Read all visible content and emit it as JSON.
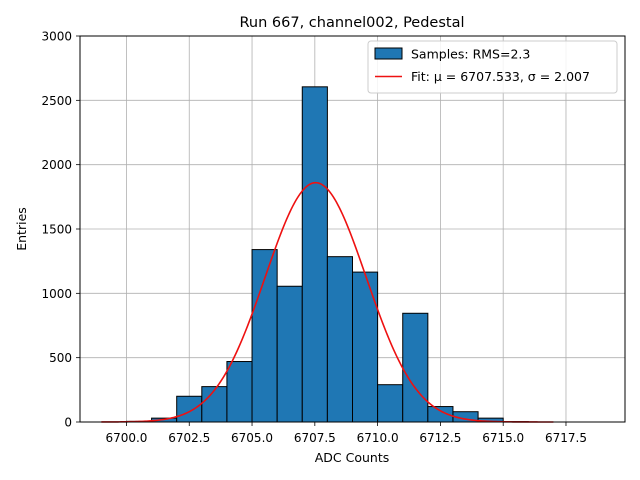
{
  "chart_data": {
    "type": "bar",
    "title": "Run 667, channel002, Pedestal",
    "xlabel": "ADC Counts",
    "ylabel": "Entries",
    "xlim": [
      6698.15,
      6719.85
    ],
    "ylim": [
      0,
      3000
    ],
    "xticks": [
      6700.0,
      6702.5,
      6705.0,
      6707.5,
      6710.0,
      6712.5,
      6715.0,
      6717.5
    ],
    "xtick_labels": [
      "6700.0",
      "6702.5",
      "6705.0",
      "6707.5",
      "6710.0",
      "6712.5",
      "6715.0",
      "6717.5"
    ],
    "yticks": [
      0,
      500,
      1000,
      1500,
      2000,
      2500,
      3000
    ],
    "ytick_labels": [
      "0",
      "500",
      "1000",
      "1500",
      "2000",
      "2500",
      "3000"
    ],
    "grid": true,
    "legend_placement": "top-right",
    "bin_width": 1,
    "bins": [
      {
        "x0": 6700,
        "x1": 6701,
        "value": 5
      },
      {
        "x0": 6701,
        "x1": 6702,
        "value": 30
      },
      {
        "x0": 6702,
        "x1": 6703,
        "value": 200
      },
      {
        "x0": 6703,
        "x1": 6704,
        "value": 275
      },
      {
        "x0": 6704,
        "x1": 6705,
        "value": 470
      },
      {
        "x0": 6705,
        "x1": 6706,
        "value": 1340
      },
      {
        "x0": 6706,
        "x1": 6707,
        "value": 1055
      },
      {
        "x0": 6707,
        "x1": 6708,
        "value": 2605
      },
      {
        "x0": 6708,
        "x1": 6709,
        "value": 1285
      },
      {
        "x0": 6709,
        "x1": 6710,
        "value": 1165
      },
      {
        "x0": 6710,
        "x1": 6711,
        "value": 290
      },
      {
        "x0": 6711,
        "x1": 6712,
        "value": 845
      },
      {
        "x0": 6712,
        "x1": 6713,
        "value": 120
      },
      {
        "x0": 6713,
        "x1": 6714,
        "value": 80
      },
      {
        "x0": 6714,
        "x1": 6715,
        "value": 30
      },
      {
        "x0": 6715,
        "x1": 6716,
        "value": 3
      }
    ],
    "fit": {
      "mu": 6707.533,
      "sigma": 2.007,
      "amplitude": 1860,
      "x_range": [
        6699,
        6717
      ]
    },
    "legend": [
      {
        "label": "Samples: RMS=2.3",
        "kind": "patch",
        "color": "#1f77b4"
      },
      {
        "label": "Fit: μ = 6707.533, σ = 2.007",
        "kind": "line",
        "color": "#ee1111"
      }
    ],
    "colors": {
      "bar_fill": "#1f77b4",
      "bar_edge": "#000000",
      "fit_line": "#ee1111",
      "grid": "#b0b0b0"
    }
  }
}
